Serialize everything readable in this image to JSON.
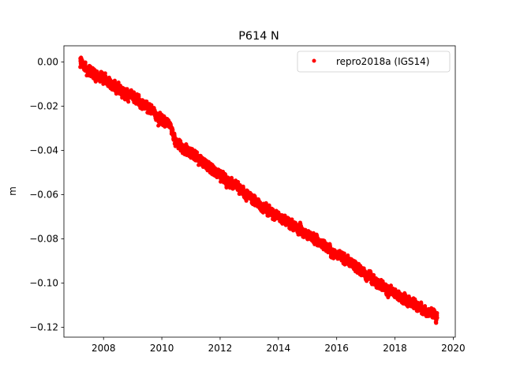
{
  "chart_data": {
    "type": "scatter",
    "title": "P614 N",
    "xlabel": "",
    "ylabel": "m",
    "xlim": [
      2006.64,
      2020.07
    ],
    "ylim": [
      -0.1245,
      0.0073
    ],
    "xticks": [
      2008,
      2010,
      2012,
      2014,
      2016,
      2018,
      2020
    ],
    "xtick_labels": [
      "2008",
      "2010",
      "2012",
      "2014",
      "2016",
      "2018",
      "2020"
    ],
    "yticks": [
      0.0,
      -0.02,
      -0.04,
      -0.06,
      -0.08,
      -0.1,
      -0.12
    ],
    "ytick_labels": [
      "0.00",
      "−0.02",
      "−0.04",
      "−0.06",
      "−0.08",
      "−0.10",
      "−0.12"
    ],
    "grid": false,
    "legend_position": "upper right",
    "series": [
      {
        "name": "repro2018a (IGS14)",
        "color": "#ff0000",
        "marker": "circle",
        "x_start": 2007.2,
        "x_end": 2019.45,
        "samples_per_year": 365,
        "trend_knots": {
          "x": [
            2007.2,
            2007.5,
            2008.0,
            2008.5,
            2009.0,
            2009.5,
            2010.0,
            2010.3,
            2010.45,
            2010.7,
            2011.0,
            2011.5,
            2012.0,
            2012.5,
            2013.0,
            2013.5,
            2014.0,
            2014.5,
            2015.0,
            2015.5,
            2016.0,
            2016.5,
            2017.0,
            2017.5,
            2018.0,
            2018.5,
            2019.0,
            2019.45
          ],
          "y": [
            0.0,
            -0.004,
            -0.008,
            -0.012,
            -0.016,
            -0.02,
            -0.026,
            -0.028,
            -0.036,
            -0.039,
            -0.041,
            -0.046,
            -0.051,
            -0.056,
            -0.061,
            -0.066,
            -0.07,
            -0.074,
            -0.078,
            -0.082,
            -0.087,
            -0.091,
            -0.096,
            -0.101,
            -0.105,
            -0.108,
            -0.112,
            -0.115
          ]
        },
        "noise_m": 0.0024
      }
    ]
  }
}
